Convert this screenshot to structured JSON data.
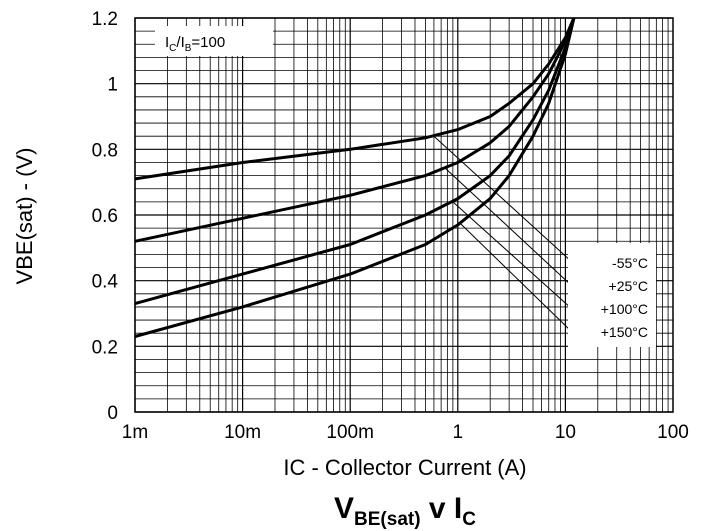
{
  "chart_data": {
    "type": "line",
    "title": {
      "main_v": "V",
      "main_v_sub": "BE(sat)",
      "mid": " v ",
      "main_i": "I",
      "main_i_sub": "C"
    },
    "xlabel": "IC - Collector Current (A)",
    "ylabel": "VBE(sat) - (V)",
    "x_scale": "log",
    "xlim": [
      0.001,
      100
    ],
    "ylim": [
      0,
      1.2
    ],
    "x_ticks": [
      0.001,
      0.01,
      0.1,
      1,
      10,
      100
    ],
    "x_tick_labels": [
      "1m",
      "10m",
      "100m",
      "1",
      "10",
      "100"
    ],
    "y_ticks": [
      0,
      0.2,
      0.4,
      0.6,
      0.8,
      1,
      1.2
    ],
    "y_tick_labels": [
      "0",
      "0.2",
      "0.4",
      "0.6",
      "0.8",
      "1",
      "1.2"
    ],
    "grid": true,
    "condition": {
      "i": "I",
      "c": "C",
      "slash": "/I",
      "b": "B",
      "val": "=100"
    },
    "series": [
      {
        "name": "-55°C",
        "x": [
          0.001,
          0.01,
          0.1,
          0.5,
          1,
          2,
          3,
          5,
          7,
          10,
          12
        ],
        "y": [
          0.71,
          0.76,
          0.8,
          0.835,
          0.86,
          0.9,
          0.94,
          1.0,
          1.06,
          1.14,
          1.2
        ]
      },
      {
        "name": "+25°C",
        "x": [
          0.001,
          0.01,
          0.1,
          0.5,
          1,
          2,
          3,
          5,
          7,
          10,
          12
        ],
        "y": [
          0.52,
          0.59,
          0.66,
          0.72,
          0.76,
          0.82,
          0.87,
          0.96,
          1.03,
          1.13,
          1.2
        ]
      },
      {
        "name": "+100°C",
        "x": [
          0.001,
          0.01,
          0.1,
          0.5,
          1,
          2,
          3,
          5,
          7,
          10,
          12
        ],
        "y": [
          0.33,
          0.42,
          0.51,
          0.6,
          0.65,
          0.72,
          0.78,
          0.89,
          0.98,
          1.11,
          1.2
        ]
      },
      {
        "name": "+150°C",
        "x": [
          0.001,
          0.01,
          0.1,
          0.5,
          1,
          2,
          3,
          5,
          7,
          10,
          12
        ],
        "y": [
          0.23,
          0.32,
          0.42,
          0.51,
          0.57,
          0.65,
          0.72,
          0.84,
          0.94,
          1.09,
          1.2
        ]
      }
    ],
    "legend_entries": [
      "-55°C",
      "+25°C",
      "+100°C",
      "+150°C"
    ],
    "legend_placement": "right, inside plot, with leader lines to curves"
  }
}
